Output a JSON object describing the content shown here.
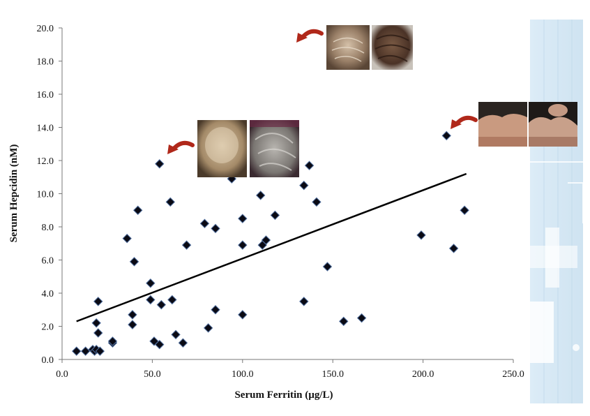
{
  "chart_data": {
    "type": "scatter",
    "title": "",
    "xlabel": "Serum Ferritin (µg/L)",
    "ylabel": "Serum Hepcidin (nM)",
    "xlim": [
      0,
      250
    ],
    "ylim": [
      0,
      20
    ],
    "xticks": [
      0,
      50,
      100,
      150,
      200,
      250
    ],
    "yticks": [
      0,
      2,
      4,
      6,
      8,
      10,
      12,
      14,
      16,
      18,
      20
    ],
    "xtick_labels": [
      "0.0",
      "50.0",
      "100.0",
      "150.0",
      "200.0",
      "250.0"
    ],
    "ytick_labels": [
      "0.0",
      "2.0",
      "4.0",
      "6.0",
      "8.0",
      "10.0",
      "12.0",
      "14.0",
      "16.0",
      "18.0",
      "20.0"
    ],
    "grid": false,
    "legend": "none",
    "marker": "diamond",
    "colors": {
      "marker": "#0a0a14",
      "marker_edge": "#4d6b9a",
      "trendline": "#000000",
      "arrow": "#b0281a",
      "side_panel": "#d6e8f4"
    },
    "x": [
      8,
      13,
      17,
      18,
      19,
      19,
      20,
      20,
      21,
      28,
      28,
      36,
      39,
      39,
      40,
      42,
      49,
      49,
      51,
      54,
      54,
      55,
      60,
      61,
      63,
      67,
      69,
      79,
      81,
      85,
      85,
      94,
      100,
      100,
      100,
      110,
      111,
      113,
      118,
      134,
      134,
      137,
      141,
      147,
      156,
      166,
      199,
      213,
      217,
      223
    ],
    "y": [
      0.5,
      0.5,
      0.6,
      0.5,
      0.6,
      2.2,
      3.5,
      1.6,
      0.5,
      1.0,
      1.1,
      7.3,
      2.1,
      2.7,
      5.9,
      9.0,
      4.6,
      3.6,
      1.1,
      0.9,
      11.8,
      3.3,
      9.5,
      3.6,
      1.5,
      1.0,
      6.9,
      8.2,
      1.9,
      7.9,
      3.0,
      10.9,
      8.5,
      6.9,
      2.7,
      9.9,
      6.9,
      7.2,
      8.7,
      10.5,
      3.5,
      11.7,
      9.5,
      5.6,
      2.3,
      2.5,
      7.5,
      13.5,
      6.7,
      9.0
    ],
    "trendline": {
      "x": [
        8,
        224
      ],
      "y": [
        2.3,
        11.2
      ]
    },
    "annotations": [
      {
        "kind": "photo-pair",
        "depicts": "scalp-photos-hair-loss",
        "target": {
          "x": 54,
          "y": 11.8
        }
      },
      {
        "kind": "photo-pair",
        "depicts": "scalp-photos-crown-thinning",
        "target": {
          "x": 125,
          "y": 18.6
        }
      },
      {
        "kind": "photo-pair",
        "depicts": "hairline-photos",
        "target": {
          "x": 213,
          "y": 13.5
        }
      }
    ]
  }
}
